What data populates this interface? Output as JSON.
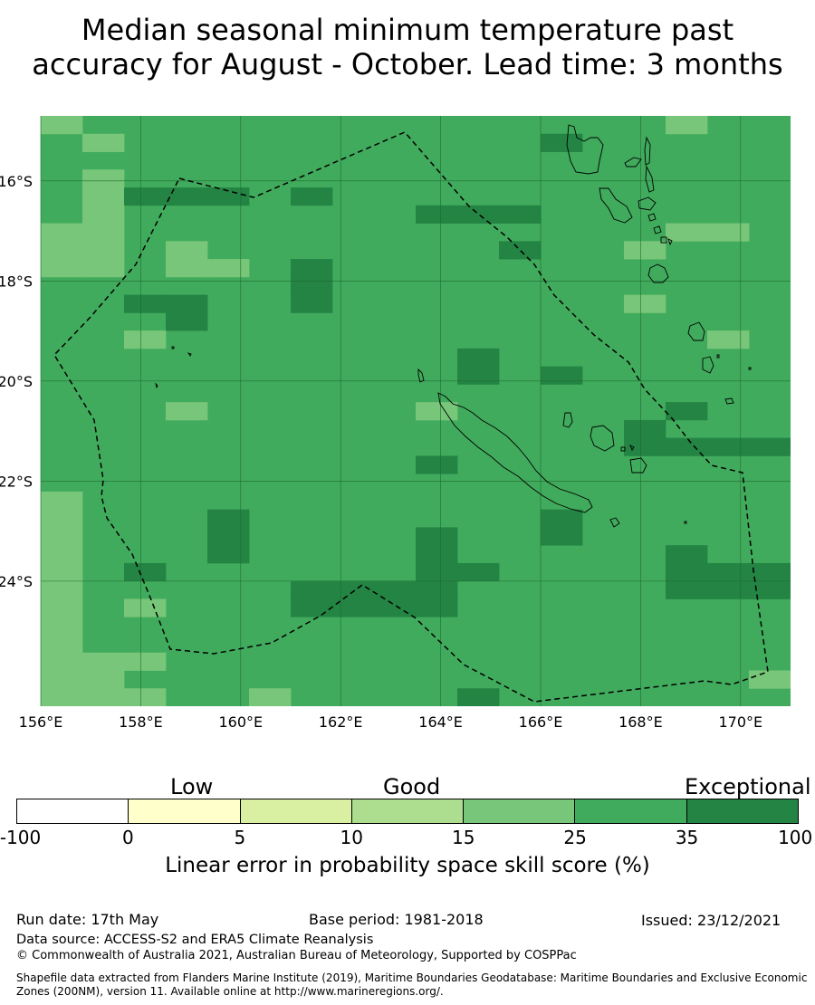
{
  "title": {
    "line1": "Median seasonal minimum temperature past",
    "line2": "accuracy for August - October. Lead time: 3 months"
  },
  "map": {
    "lon_range": [
      156,
      171
    ],
    "lat_range": [
      -26.5,
      -14.7
    ],
    "lon_ticks": [
      "156°E",
      "158°E",
      "160°E",
      "162°E",
      "164°E",
      "166°E",
      "168°E",
      "170°E"
    ],
    "lat_ticks": [
      "16°S",
      "18°S",
      "20°S",
      "22°S",
      "24°S"
    ],
    "colors": {
      "c25": "#78c679",
      "c35": "#41ab5d",
      "c100": "#238443",
      "grid": "#1e6b30",
      "coast": "#000000",
      "boundary": "#000000"
    },
    "cell_key": "0 = 25-35, 1 = 15-25, 2 = 35-100",
    "cells": [
      "100000000000000100",
      "010000000000200000",
      "000000000000000000",
      "010000000000000000",
      "012220200000000000",
      "010000000222000000",
      "110000000000000110",
      "110100000002001000",
      "110110200000000000",
      "000000200000000000",
      "002200200000001000",
      "000200000000000000",
      "001000000000000010",
      "000000000020000000",
      "000000000020200000",
      "000000000000000000",
      "000100000100000200",
      "000000000000002000",
      "000000000000002222",
      "000000000200000000",
      "000000000000000000",
      "100000000000000000",
      "100020000000200000",
      "100020000200200000",
      "100020000200000200",
      "102000000220000222",
      "100000222200000222",
      "101000222200000000",
      "100000000000000000",
      "100000000000000000",
      "111000000000000000",
      "110000000000000001",
      "111001000020000000"
    ]
  },
  "legend": {
    "low": "Low",
    "good": "Good",
    "exceptional": "Exceptional",
    "colors": [
      "#ffffff",
      "#ffffcc",
      "#d9f0a3",
      "#addd8e",
      "#78c679",
      "#41ab5d",
      "#238443"
    ],
    "ticks": [
      "-100",
      "0",
      "5",
      "10",
      "15",
      "25",
      "35",
      "100"
    ],
    "label": "Linear error in probability space skill score (%)"
  },
  "footer": {
    "run_date": "Run date: 17th May",
    "base_period": "Base period: 1981-2018",
    "issued": "Issued: 23/12/2021",
    "source": "Data source: ACCESS-S2 and ERA5 Climate Reanalysis",
    "copyright": "© Commonwealth of Australia 2021, Australian Bureau of Meteorology, Supported by COSPPac",
    "shapefile": "Shapefile data extracted from Flanders Marine Institute (2019), Maritime Boundaries Geodatabase: Maritime Boundaries and Exclusive Economic Zones (200NM), version 11. Available online at http://www.marineregions.org/."
  }
}
